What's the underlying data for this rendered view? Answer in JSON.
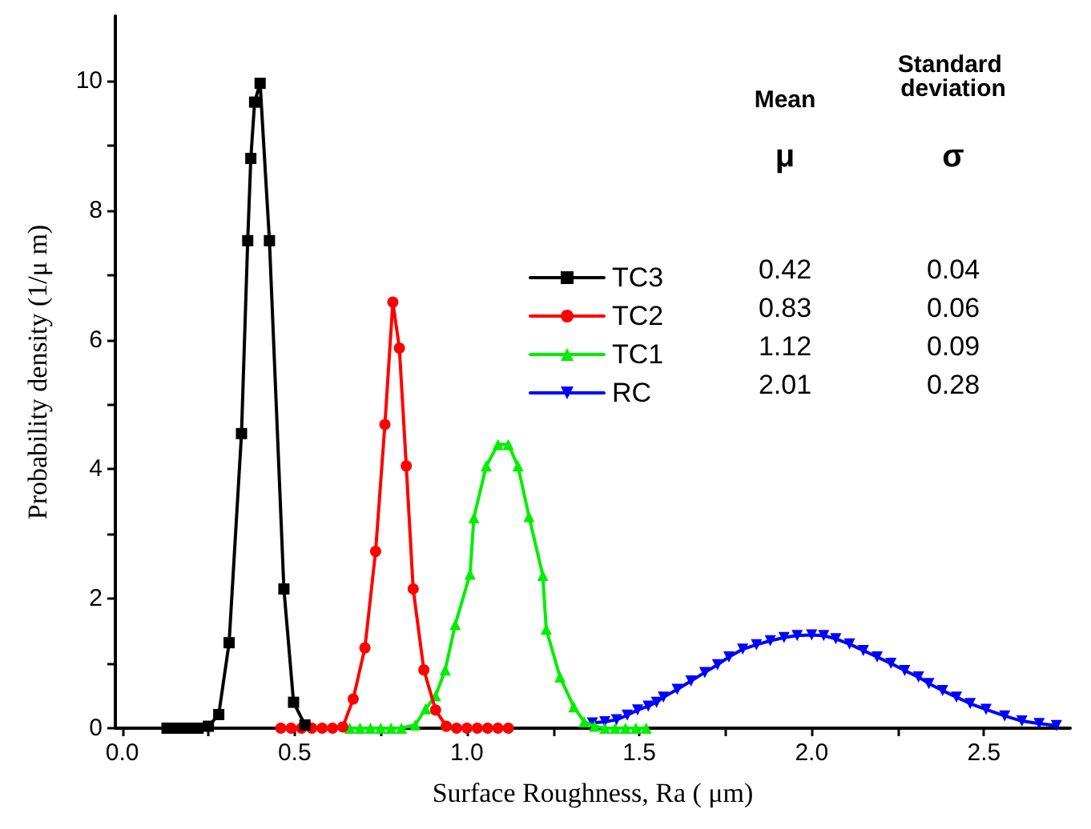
{
  "chart_data": {
    "type": "line",
    "xlabel": "Surface Roughness, Ra ( μm)",
    "ylabel": "Probability density (1/μ m)",
    "xlim": [
      -0.02,
      2.75
    ],
    "xticks": [
      {
        "value": 0,
        "label": "0.0"
      },
      {
        "value": 0.25,
        "label": null
      },
      0.5,
      {
        "value": 0.75,
        "label": null
      },
      {
        "value": 1,
        "label": "1.0"
      },
      {
        "value": 1.25,
        "label": null
      },
      1.5,
      {
        "value": 1.75,
        "label": null
      },
      {
        "value": 2,
        "label": "2.0"
      },
      {
        "value": 2.25,
        "label": null
      },
      2.5
    ],
    "ylim": [
      0,
      11
    ],
    "yticks": [
      0,
      {
        "value": 1,
        "label": null
      },
      2,
      {
        "value": 3,
        "label": null
      },
      4,
      {
        "value": 5,
        "label": null
      },
      6,
      {
        "value": 7,
        "label": null
      },
      8,
      {
        "value": 9,
        "label": null
      },
      10
    ],
    "grid": false,
    "legend": "top right",
    "line_style": "solid",
    "annotations": [
      "Mean",
      "Standard deviation",
      "μ",
      "σ",
      "0.42",
      "0.04",
      "0.83",
      "0.06",
      "1.12",
      "0.09",
      "2.01",
      "0.28"
    ],
    "series": [
      {
        "name": "TC3",
        "color": "#000000",
        "marker": "square",
        "x": [
          0.13,
          0.16,
          0.19,
          0.22,
          0.25,
          0.28,
          0.31,
          0.346,
          0.364,
          0.373,
          0.384,
          0.4,
          0.427,
          0.469,
          0.497,
          0.53
        ],
        "values": [
          0,
          0,
          0,
          0,
          0.03,
          0.21,
          1.32,
          4.55,
          7.53,
          8.8,
          9.67,
          9.96,
          7.53,
          2.15,
          0.4,
          0.05
        ]
      },
      {
        "name": "TC2",
        "color": "#ff0000",
        "marker": "circle",
        "x": [
          0.46,
          0.49,
          0.52,
          0.55,
          0.58,
          0.61,
          0.64,
          0.67,
          0.704,
          0.735,
          0.762,
          0.785,
          0.804,
          0.824,
          0.844,
          0.875,
          0.909,
          0.94,
          0.97,
          1.0,
          1.03,
          1.06,
          1.09,
          1.12
        ],
        "values": [
          0,
          0,
          0,
          0,
          0,
          0,
          0.02,
          0.45,
          1.24,
          2.73,
          4.69,
          6.58,
          5.87,
          4.05,
          2.15,
          0.9,
          0.28,
          0.03,
          0,
          0,
          0,
          0,
          0,
          0
        ]
      },
      {
        "name": "TC1",
        "color": "#00ee00",
        "marker": "triangle",
        "x": [
          0.66,
          0.69,
          0.72,
          0.75,
          0.78,
          0.81,
          0.85,
          0.88,
          0.909,
          0.937,
          0.966,
          1.009,
          1.02,
          1.056,
          1.09,
          1.12,
          1.148,
          1.18,
          1.22,
          1.23,
          1.27,
          1.31,
          1.34,
          1.37,
          1.4,
          1.43,
          1.46,
          1.49,
          1.52
        ],
        "values": [
          0,
          0,
          0,
          0,
          0,
          0,
          0.05,
          0.3,
          0.5,
          0.9,
          1.6,
          2.38,
          3.25,
          4.05,
          4.38,
          4.38,
          4.05,
          3.27,
          2.36,
          1.53,
          0.79,
          0.33,
          0.1,
          0.03,
          0,
          0,
          0,
          0,
          0
        ]
      },
      {
        "name": "RC",
        "color": "#0000ff",
        "marker": "triangle-down",
        "x": [
          1.364,
          1.4,
          1.434,
          1.465,
          1.495,
          1.526,
          1.55,
          1.57,
          1.61,
          1.65,
          1.69,
          1.727,
          1.76,
          1.8,
          1.84,
          1.88,
          1.92,
          1.958,
          2.0,
          2.035,
          2.07,
          2.11,
          2.15,
          2.19,
          2.23,
          2.27,
          2.31,
          2.34,
          2.38,
          2.42,
          2.46,
          2.506,
          2.56,
          2.61,
          2.66,
          2.71
        ],
        "values": [
          0.08,
          0.1,
          0.13,
          0.2,
          0.28,
          0.34,
          0.4,
          0.48,
          0.6,
          0.73,
          0.86,
          0.98,
          1.1,
          1.22,
          1.29,
          1.35,
          1.4,
          1.43,
          1.44,
          1.43,
          1.38,
          1.3,
          1.2,
          1.1,
          1.0,
          0.89,
          0.79,
          0.69,
          0.58,
          0.48,
          0.38,
          0.29,
          0.19,
          0.11,
          0.07,
          0.04
        ]
      }
    ]
  }
}
